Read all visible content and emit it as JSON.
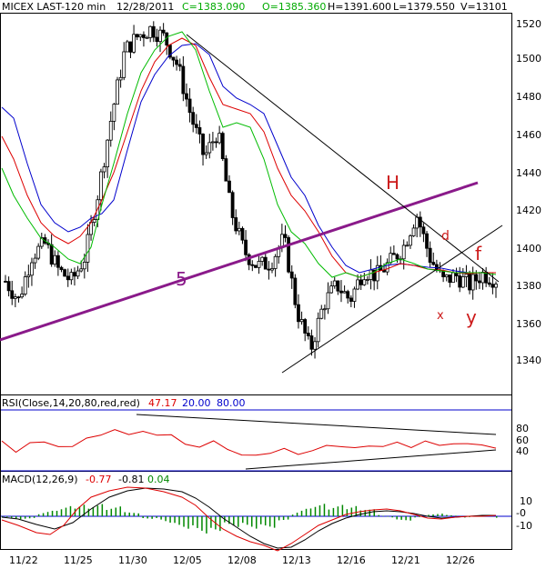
{
  "header": {
    "symbol": "MICEX LAST-120 min",
    "date": "12/28/2011",
    "close": "C=1383.090",
    "open": "O=1385.360",
    "high": "H=1391.600",
    "low": "L=1379.550",
    "volume": "V=13101"
  },
  "price_panel": {
    "yticks": [
      "1520",
      "1500",
      "1480",
      "1460",
      "1440",
      "1420",
      "1400",
      "1380",
      "1360",
      "1340"
    ],
    "annotations": {
      "wave5": "5",
      "head": "H",
      "d": "d",
      "f": "f",
      "x": "x",
      "y": "y"
    }
  },
  "rsi_panel": {
    "label": "RSI(Close,14,20,80,red,red)",
    "value": "47.17",
    "low": "20.00",
    "high": "80.00",
    "yticks": [
      "80",
      "60",
      "40"
    ]
  },
  "macd_panel": {
    "label": "MACD(12,26,9)",
    "v1": "-0.77",
    "v2": "-0.81",
    "v3": "0.04",
    "yticks": [
      "10",
      "-0",
      "-10"
    ]
  },
  "xticks": [
    "11/22",
    "11/25",
    "11/30",
    "12/05",
    "12/08",
    "12/13",
    "12/16",
    "12/21",
    "12/26"
  ],
  "colors": {
    "frame": "#000000",
    "fast_ma": "#00bb00",
    "mid_ma": "#dd0000",
    "slow_ma": "#0000cc",
    "trend": "#8a1a8a",
    "macd_hist": "#008800"
  },
  "chart_data": {
    "type": "line",
    "title": "MICEX LAST-120 min",
    "xlabel": "",
    "ylabel": "",
    "ylim": [
      1330,
      1525
    ],
    "categories": [
      "11/22",
      "11/25",
      "11/30",
      "12/05",
      "12/08",
      "12/13",
      "12/16",
      "12/21",
      "12/26"
    ],
    "close": [
      1382,
      1372,
      1396,
      1402,
      1388,
      1382,
      1395,
      1430,
      1470,
      1505,
      1513,
      1517,
      1512,
      1497,
      1470,
      1448,
      1462,
      1420,
      1398,
      1390,
      1392,
      1405,
      1366,
      1345,
      1370,
      1380,
      1372,
      1388,
      1385,
      1392,
      1400,
      1418,
      1395,
      1382,
      1385,
      1380,
      1386,
      1383
    ],
    "rsi": [
      55,
      40,
      52,
      58,
      45,
      50,
      60,
      70,
      75,
      71,
      72,
      70,
      66,
      54,
      44,
      60,
      40,
      35,
      30,
      38,
      42,
      36,
      38,
      52,
      45,
      48,
      46,
      50,
      53,
      48,
      55,
      52,
      50,
      55,
      48,
      47
    ],
    "macd": [
      -2,
      -4,
      -3,
      0,
      4,
      9,
      13,
      16,
      15,
      14,
      10,
      5,
      -2,
      -6,
      -10,
      -15,
      -18,
      -17,
      -12,
      -8,
      -4,
      0,
      1,
      -1,
      -2,
      -1,
      0,
      -1,
      0,
      -1
    ]
  }
}
